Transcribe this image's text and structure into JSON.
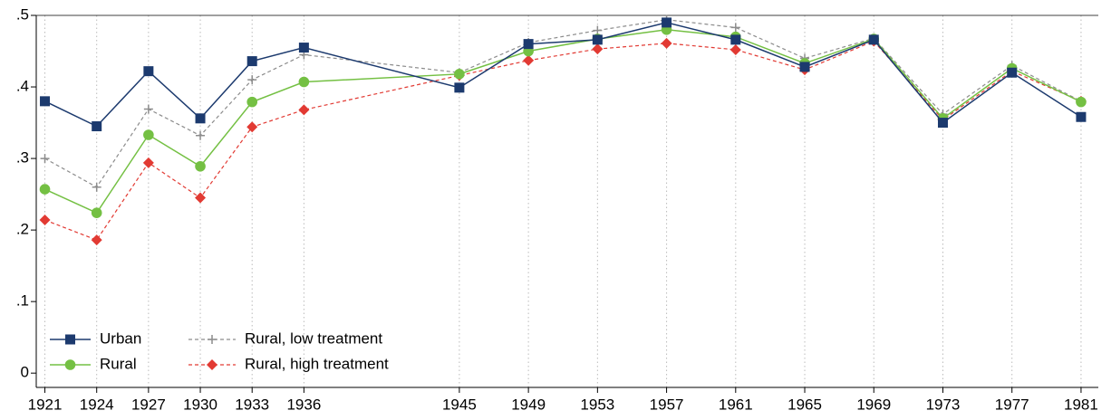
{
  "chart_data": {
    "type": "line",
    "x": [
      1921,
      1924,
      1927,
      1930,
      1933,
      1936,
      1945,
      1949,
      1953,
      1957,
      1961,
      1965,
      1969,
      1973,
      1977,
      1981
    ],
    "xlim": [
      1920.5,
      1982
    ],
    "xticks": [
      1921,
      1924,
      1927,
      1930,
      1933,
      1936,
      1945,
      1949,
      1953,
      1957,
      1961,
      1965,
      1969,
      1973,
      1977,
      1981
    ],
    "ylim": [
      -0.02,
      0.5
    ],
    "yticks": [
      0,
      {
        "value": 0.1,
        "label": ".1"
      },
      {
        "value": 0.2,
        "label": ".2"
      },
      {
        "value": 0.3,
        "label": ".3"
      },
      {
        "value": 0.4,
        "label": ".4"
      },
      {
        "value": 0.5,
        "label": ".5"
      }
    ],
    "grid": true,
    "legend": "lower left",
    "series": [
      {
        "name": "Urban",
        "color": "#1c3a6e",
        "marker": "square",
        "dash": false,
        "values": [
          0.38,
          0.345,
          0.422,
          0.356,
          0.436,
          0.455,
          0.399,
          0.46,
          0.466,
          0.49,
          0.466,
          0.428,
          0.466,
          0.35,
          0.42,
          0.358
        ]
      },
      {
        "name": "Rural",
        "color": "#74c043",
        "marker": "circle",
        "dash": false,
        "values": [
          0.257,
          0.224,
          0.333,
          0.289,
          0.379,
          0.407,
          0.418,
          0.45,
          0.467,
          0.48,
          0.47,
          0.433,
          0.467,
          0.356,
          0.426,
          0.379
        ]
      },
      {
        "name": "Rural, low treatment",
        "color": "#8c8c8c",
        "marker": "plus",
        "dash": true,
        "values": [
          0.3,
          0.26,
          0.369,
          0.332,
          0.41,
          0.445,
          0.42,
          0.462,
          0.479,
          0.494,
          0.483,
          0.44,
          0.468,
          0.362,
          0.43,
          0.38
        ]
      },
      {
        "name": "Rural, high treatment",
        "color": "#e23a33",
        "marker": "diamond",
        "dash": true,
        "values": [
          0.214,
          0.186,
          0.294,
          0.245,
          0.344,
          0.368,
          0.416,
          0.437,
          0.453,
          0.461,
          0.452,
          0.424,
          0.464,
          0.354,
          0.422,
          0.38
        ]
      }
    ]
  }
}
